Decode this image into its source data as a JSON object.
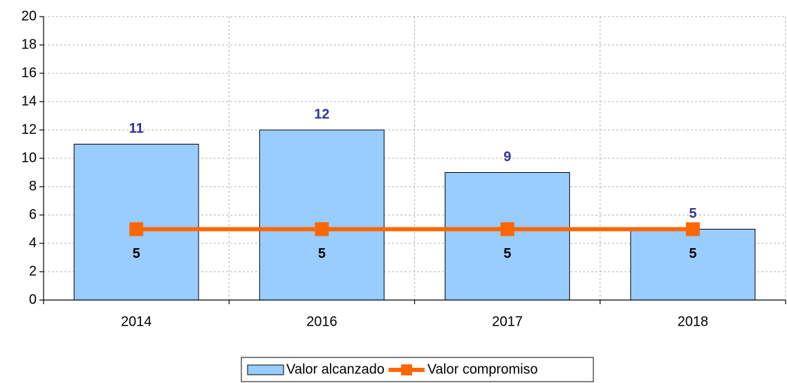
{
  "chart_data": {
    "type": "bar",
    "categories": [
      "2014",
      "2016",
      "2017",
      "2018"
    ],
    "series": [
      {
        "name": "Valor alcanzado",
        "type": "bar",
        "color": "#99ccff",
        "values": [
          11,
          12,
          9,
          5
        ],
        "label_color": "#333399"
      },
      {
        "name": "Valor compromiso",
        "type": "line",
        "color": "#ff6600",
        "values": [
          5,
          5,
          5,
          5
        ],
        "label_color": "#000000"
      }
    ],
    "ylim": [
      0,
      20
    ],
    "yticks": [
      0,
      2,
      4,
      6,
      8,
      10,
      12,
      14,
      16,
      18,
      20
    ],
    "grid": true,
    "legend": "bottom"
  }
}
